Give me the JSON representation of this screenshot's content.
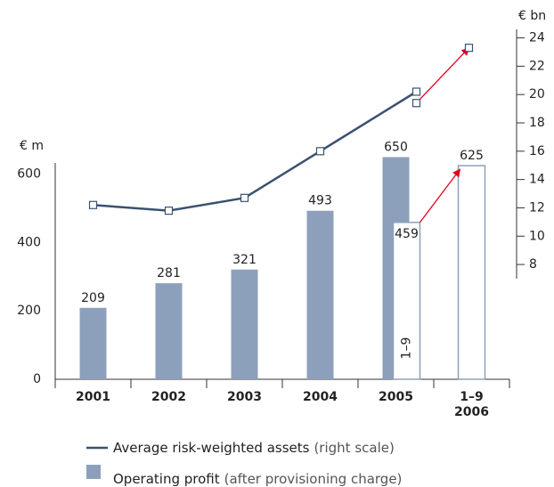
{
  "chart_data": {
    "type": "bar",
    "categories": [
      "2001",
      "2002",
      "2003",
      "2004",
      "2005",
      [
        "1–9",
        "2006"
      ]
    ],
    "ylabel": "€ m",
    "y2label": "€ bn",
    "ylim": [
      0,
      633
    ],
    "yticks": [
      0,
      200,
      400,
      600
    ],
    "y2lim": [
      7,
      24.6
    ],
    "y2ticks": [
      8,
      10,
      12,
      14,
      16,
      18,
      20,
      22,
      24
    ],
    "series": [
      {
        "name": "Operating profit",
        "legend_note": "(after provisioning charge)",
        "type": "bar",
        "color": "#8da0bb",
        "values": [
          209,
          281,
          321,
          493,
          650,
          null
        ]
      },
      {
        "name": "1–9",
        "type": "bar",
        "color": "#8da0bb",
        "fill": "#ffffff",
        "values": [
          null,
          null,
          null,
          null,
          459,
          625
        ]
      },
      {
        "name": "Average risk-weighted assets",
        "legend_note": "(right scale)",
        "type": "line",
        "axis": "y2",
        "color": "#3a5270",
        "values": [
          12.2,
          11.8,
          12.7,
          16.0,
          20.2,
          null
        ]
      },
      {
        "type": "line",
        "axis": "y2",
        "color": "#e3001b",
        "values": [
          null,
          null,
          null,
          null,
          19.4,
          23.3
        ]
      }
    ]
  }
}
